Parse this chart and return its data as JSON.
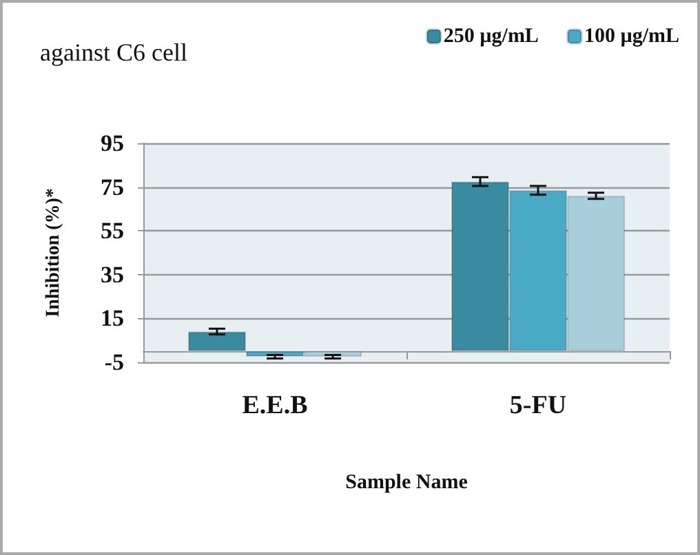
{
  "chart_data": {
    "type": "bar",
    "title": "against C6 cell",
    "xlabel": "Sample Name",
    "ylabel": "Inhibition (%)*",
    "categories": [
      "E.E.B",
      "5-FU"
    ],
    "series": [
      {
        "name": "250 µg/mL",
        "color": "#3a8aa0",
        "values": [
          9,
          77.5
        ],
        "errors": [
          1.3,
          2
        ]
      },
      {
        "name": "100 µg/mL",
        "color": "#4aaac6",
        "values": [
          -2.5,
          73.5
        ],
        "errors": [
          0.8,
          2
        ]
      },
      {
        "color": "#a8cedb",
        "values": [
          -2.5,
          71
        ],
        "errors": [
          0.8,
          1.4
        ]
      }
    ],
    "ylim": [
      -5,
      95
    ],
    "yticks": [
      -5,
      15,
      35,
      55,
      75,
      95
    ],
    "grid": "y",
    "legend": "top right"
  }
}
